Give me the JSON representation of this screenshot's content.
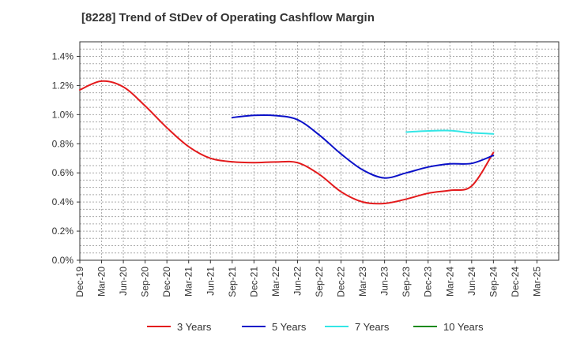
{
  "chart_data": {
    "type": "line",
    "title": "[8228]  Trend of StDev of Operating Cashflow Margin",
    "xlabel": "",
    "ylabel": "",
    "x_ticks": [
      "Dec-19",
      "Mar-20",
      "Jun-20",
      "Sep-20",
      "Dec-20",
      "Mar-21",
      "Jun-21",
      "Sep-21",
      "Dec-21",
      "Mar-22",
      "Jun-22",
      "Sep-22",
      "Dec-22",
      "Mar-23",
      "Jun-23",
      "Sep-23",
      "Dec-23",
      "Mar-24",
      "Jun-24",
      "Sep-24",
      "Dec-24",
      "Mar-25"
    ],
    "y_ticks": [
      "0.0%",
      "0.2%",
      "0.4%",
      "0.6%",
      "0.8%",
      "1.0%",
      "1.2%",
      "1.4%"
    ],
    "ylim": [
      0,
      1.5
    ],
    "y_unit": "%",
    "grid": true,
    "legend_position": "bottom",
    "series": [
      {
        "name": "3 Years",
        "color": "#e31a1c",
        "points": [
          [
            "Dec-19",
            1.17
          ],
          [
            "Mar-20",
            1.23
          ],
          [
            "Jun-20",
            1.19
          ],
          [
            "Sep-20",
            1.06
          ],
          [
            "Dec-20",
            0.91
          ],
          [
            "Mar-21",
            0.78
          ],
          [
            "Jun-21",
            0.7
          ],
          [
            "Sep-21",
            0.676
          ],
          [
            "Dec-21",
            0.67
          ],
          [
            "Mar-22",
            0.675
          ],
          [
            "Jun-22",
            0.67
          ],
          [
            "Sep-22",
            0.59
          ],
          [
            "Dec-22",
            0.47
          ],
          [
            "Mar-23",
            0.4
          ],
          [
            "Jun-23",
            0.39
          ],
          [
            "Sep-23",
            0.42
          ],
          [
            "Dec-23",
            0.46
          ],
          [
            "Mar-24",
            0.48
          ],
          [
            "Jun-24",
            0.51
          ],
          [
            "Sep-24",
            0.74
          ]
        ]
      },
      {
        "name": "5 Years",
        "color": "#0a10c8",
        "points": [
          [
            "Sep-21",
            0.98
          ],
          [
            "Dec-21",
            0.995
          ],
          [
            "Mar-22",
            0.993
          ],
          [
            "Jun-22",
            0.965
          ],
          [
            "Sep-22",
            0.86
          ],
          [
            "Dec-22",
            0.73
          ],
          [
            "Mar-23",
            0.62
          ],
          [
            "Jun-23",
            0.565
          ],
          [
            "Sep-23",
            0.6
          ],
          [
            "Dec-23",
            0.64
          ],
          [
            "Mar-24",
            0.662
          ],
          [
            "Jun-24",
            0.665
          ],
          [
            "Sep-24",
            0.72
          ]
        ]
      },
      {
        "name": "7 Years",
        "color": "#33e6e6",
        "points": [
          [
            "Sep-23",
            0.88
          ],
          [
            "Dec-23",
            0.888
          ],
          [
            "Mar-24",
            0.89
          ],
          [
            "Jun-24",
            0.875
          ],
          [
            "Sep-24",
            0.868
          ]
        ]
      },
      {
        "name": "10 Years",
        "color": "#1a8a1a",
        "points": []
      }
    ]
  }
}
